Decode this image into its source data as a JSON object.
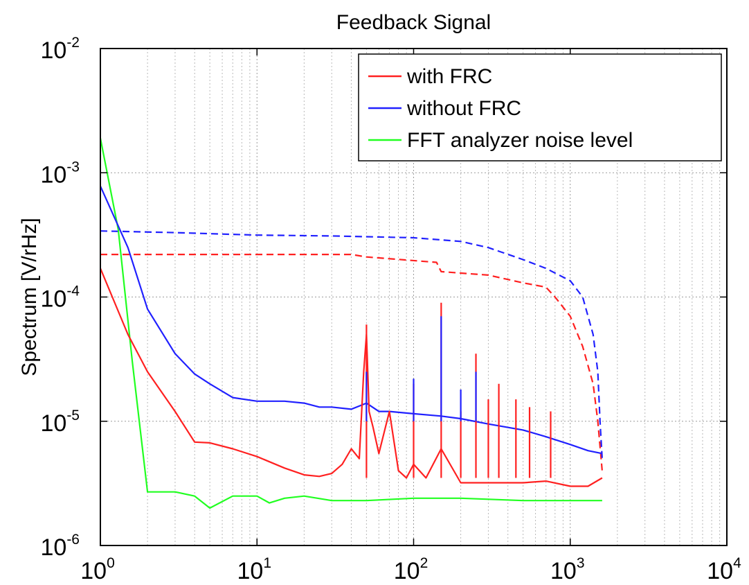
{
  "chart_data": {
    "type": "line",
    "title": "Feedback Signal",
    "xlabel": "",
    "ylabel": "Spectrum [V/rHz]",
    "x_scale": "log",
    "y_scale": "log",
    "xlim": [
      1,
      10000
    ],
    "ylim": [
      1e-06,
      0.01
    ],
    "grid": true,
    "legend_position": "top-right",
    "x_ticks": [
      {
        "base": "10",
        "exp": "0"
      },
      {
        "base": "10",
        "exp": "1"
      },
      {
        "base": "10",
        "exp": "2"
      },
      {
        "base": "10",
        "exp": "3"
      },
      {
        "base": "10",
        "exp": "4"
      }
    ],
    "y_ticks": [
      {
        "base": "10",
        "exp": "-6"
      },
      {
        "base": "10",
        "exp": "-5"
      },
      {
        "base": "10",
        "exp": "-4"
      },
      {
        "base": "10",
        "exp": "-3"
      },
      {
        "base": "10",
        "exp": "-2"
      }
    ],
    "legend": [
      {
        "label": "with FRC",
        "color": "#ff2020"
      },
      {
        "label": "without FRC",
        "color": "#2020ff"
      },
      {
        "label": "FFT analyzer noise level",
        "color": "#20ff20"
      }
    ],
    "series": [
      {
        "name": "with FRC",
        "color": "#ff2020",
        "style": "solid",
        "x": [
          1,
          1.5,
          2,
          3,
          4,
          5,
          7,
          10,
          15,
          20,
          25,
          30,
          35,
          40,
          45,
          48,
          50,
          52,
          55,
          60,
          70,
          80,
          90,
          100,
          120,
          150,
          200,
          300,
          500,
          700,
          1000,
          1300,
          1600
        ],
        "y": [
          0.00017,
          5e-05,
          2.5e-05,
          1.2e-05,
          6.8e-06,
          6.7e-06,
          6e-06,
          5.2e-06,
          4.2e-06,
          3.7e-06,
          3.6e-06,
          3.8e-06,
          4.5e-06,
          6e-06,
          5e-06,
          2.5e-05,
          5e-05,
          1.2e-05,
          9e-06,
          5.5e-06,
          1.2e-05,
          4e-06,
          3.5e-06,
          4.5e-06,
          3.5e-06,
          6e-06,
          3.2e-06,
          3.2e-06,
          3.2e-06,
          3.3e-06,
          3e-06,
          3e-06,
          3.5e-06
        ]
      },
      {
        "name": "without FRC",
        "color": "#2020ff",
        "style": "solid",
        "x": [
          1,
          1.5,
          2,
          3,
          4,
          5,
          7,
          10,
          15,
          20,
          25,
          30,
          40,
          50,
          60,
          70,
          100,
          150,
          200,
          300,
          500,
          700,
          1000,
          1300,
          1600
        ],
        "y": [
          0.00078,
          0.00025,
          8e-05,
          3.5e-05,
          2.4e-05,
          2e-05,
          1.55e-05,
          1.45e-05,
          1.45e-05,
          1.4e-05,
          1.3e-05,
          1.3e-05,
          1.25e-05,
          1.4e-05,
          1.2e-05,
          1.2e-05,
          1.15e-05,
          1.1e-05,
          1.05e-05,
          9.5e-06,
          8.5e-06,
          7.5e-06,
          6.5e-06,
          5.8e-06,
          5.5e-06
        ]
      },
      {
        "name": "FFT analyzer noise level",
        "color": "#20ff20",
        "style": "solid",
        "x": [
          1,
          1.3,
          1.6,
          2,
          3,
          4,
          5,
          7,
          10,
          12,
          15,
          20,
          30,
          50,
          100,
          200,
          500,
          1000,
          1600
        ],
        "y": [
          0.0019,
          0.00035,
          3e-05,
          2.7e-06,
          2.7e-06,
          2.5e-06,
          2e-06,
          2.5e-06,
          2.5e-06,
          2.2e-06,
          2.4e-06,
          2.5e-06,
          2.3e-06,
          2.3e-06,
          2.4e-06,
          2.4e-06,
          2.3e-06,
          2.3e-06,
          2.3e-06
        ]
      },
      {
        "name": "without FRC (dashed)",
        "color": "#2020ff",
        "style": "dashed",
        "x": [
          1,
          3,
          10,
          30,
          100,
          200,
          300,
          500,
          700,
          1000,
          1200,
          1400,
          1500,
          1550,
          1600
        ],
        "y": [
          0.00034,
          0.00033,
          0.000315,
          0.00031,
          0.0003,
          0.00028,
          0.00025,
          0.0002,
          0.00017,
          0.000135,
          0.0001,
          5e-05,
          2.5e-05,
          1e-05,
          5e-06
        ]
      },
      {
        "name": "with FRC (dashed)",
        "color": "#ff2020",
        "style": "dashed",
        "x": [
          1,
          10,
          40,
          50,
          140,
          150,
          300,
          500,
          700,
          800,
          1000,
          1200,
          1400,
          1500,
          1600
        ],
        "y": [
          0.00022,
          0.00022,
          0.00022,
          0.00021,
          0.00019,
          0.00016,
          0.00015,
          0.00013,
          0.00012,
          0.0001,
          7e-05,
          4e-05,
          2e-05,
          1e-05,
          4e-06
        ]
      }
    ],
    "spikes": {
      "with FRC": [
        {
          "x": 50,
          "y": 6e-05
        },
        {
          "x": 100,
          "y": 2e-05
        },
        {
          "x": 150,
          "y": 9e-05
        },
        {
          "x": 200,
          "y": 1.2e-05
        },
        {
          "x": 250,
          "y": 3.5e-05
        },
        {
          "x": 300,
          "y": 1.5e-05
        },
        {
          "x": 350,
          "y": 2e-05
        },
        {
          "x": 450,
          "y": 1.5e-05
        },
        {
          "x": 550,
          "y": 1.3e-05
        },
        {
          "x": 750,
          "y": 1.2e-05
        }
      ],
      "without FRC": [
        {
          "x": 50,
          "y": 2.5e-05
        },
        {
          "x": 100,
          "y": 2.2e-05
        },
        {
          "x": 150,
          "y": 7e-05
        },
        {
          "x": 200,
          "y": 1.8e-05
        },
        {
          "x": 250,
          "y": 2.5e-05
        }
      ]
    }
  }
}
